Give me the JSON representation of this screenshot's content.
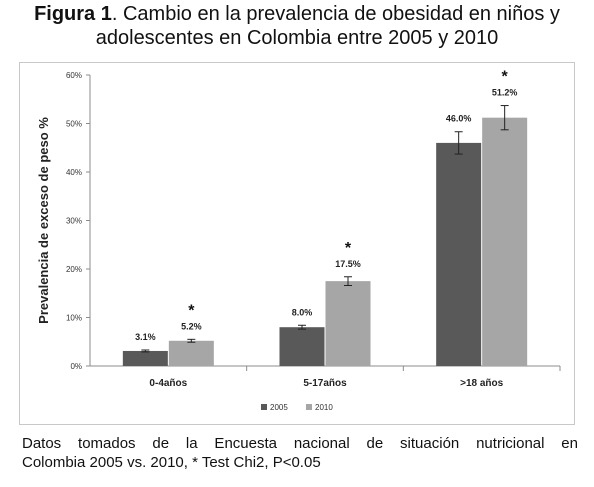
{
  "figure": {
    "title_bold": "Figura 1",
    "title_rest": ". Cambio en la prevalencia de obesidad en niños y",
    "title_line2": "adolescentes en Colombia entre 2005 y 2010",
    "caption_line1": "Datos tomados de la Encuesta nacional de situación nutricional en",
    "caption_line2": "Colombia 2005 vs. 2010, *  Test Chi2,  P<0.05"
  },
  "chart_data": {
    "type": "bar",
    "title": "",
    "xlabel": "",
    "ylabel": "Prevalencia de exceso de peso %",
    "categories": [
      "0-4años",
      "5-17años",
      ">18 años"
    ],
    "series": [
      {
        "name": "2005",
        "color": "#595959",
        "values": [
          3.1,
          8.0,
          46.0
        ],
        "labels": [
          "3.1%",
          "8.0%",
          "46.0%"
        ],
        "errors": [
          0.2,
          0.4,
          2.3
        ]
      },
      {
        "name": "2010",
        "color": "#a6a6a6",
        "values": [
          5.2,
          17.5,
          51.2
        ],
        "labels": [
          "5.2%",
          "17.5%",
          "51.2%"
        ],
        "errors": [
          0.3,
          0.9,
          2.5
        ]
      }
    ],
    "significance": [
      "*",
      "*",
      "*"
    ],
    "ylim": [
      0,
      60
    ],
    "yticks": [
      "0%",
      "10%",
      "20%",
      "30%",
      "40%",
      "50%",
      "60%"
    ],
    "grid": false,
    "legend_position": "bottom"
  }
}
